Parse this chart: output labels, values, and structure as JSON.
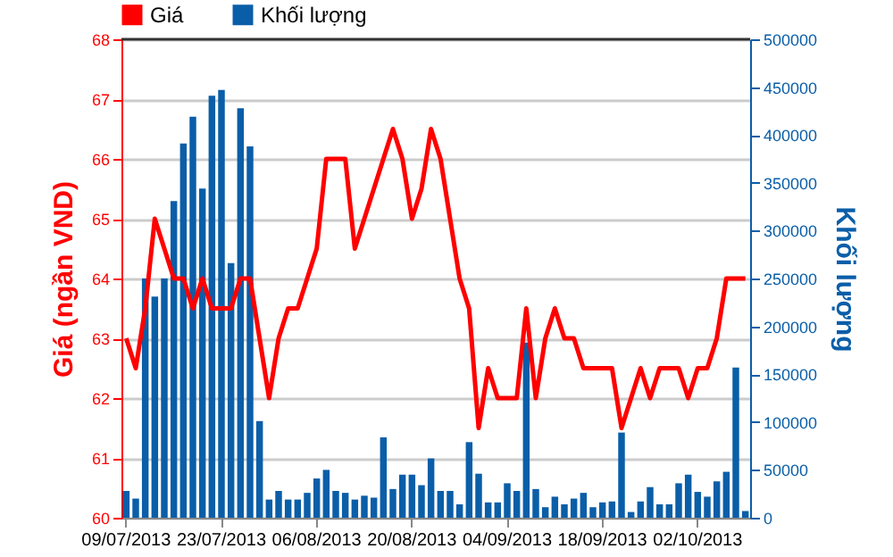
{
  "chart_data": {
    "type": "bar",
    "categories": [
      "09/07/2013",
      null,
      null,
      null,
      null,
      null,
      null,
      null,
      null,
      null,
      "23/07/2013",
      null,
      null,
      null,
      null,
      null,
      null,
      null,
      null,
      null,
      "06/08/2013",
      null,
      null,
      null,
      null,
      null,
      null,
      null,
      null,
      null,
      "20/08/2013",
      null,
      null,
      null,
      null,
      null,
      null,
      null,
      null,
      null,
      "04/09/2013",
      null,
      null,
      null,
      null,
      null,
      null,
      null,
      null,
      null,
      "18/09/2013",
      null,
      null,
      null,
      null,
      null,
      null,
      null,
      null,
      null,
      "02/10/2013",
      null,
      null,
      null,
      null,
      null
    ],
    "series": [
      {
        "name": "Giá",
        "type": "line",
        "color": "#ff0000",
        "values": [
          63.0,
          62.5,
          63.5,
          65.0,
          64.5,
          64.0,
          64.0,
          63.5,
          64.0,
          63.5,
          63.5,
          63.5,
          64.0,
          64.0,
          63.0,
          62.0,
          63.0,
          63.5,
          63.5,
          64.0,
          64.5,
          66.0,
          66.0,
          66.0,
          64.5,
          65.0,
          65.5,
          66.0,
          66.5,
          66.0,
          65.0,
          65.5,
          66.5,
          66.0,
          65.0,
          64.0,
          63.5,
          61.5,
          62.5,
          62.0,
          62.0,
          62.0,
          63.5,
          62.0,
          63.0,
          63.5,
          63.0,
          63.0,
          62.5,
          62.5,
          62.5,
          62.5,
          61.5,
          62.0,
          62.5,
          62.0,
          62.5,
          62.5,
          62.5,
          62.0,
          62.5,
          62.5,
          63.0,
          64.0,
          64.0,
          64.0
        ]
      },
      {
        "name": "Khối lượng",
        "axis": "y2",
        "color": "#0a5ea8",
        "values": [
          28000,
          20000,
          250000,
          231000,
          250000,
          331000,
          391000,
          419000,
          344000,
          441000,
          447000,
          266000,
          428000,
          388000,
          101000,
          19000,
          28000,
          19000,
          19000,
          26000,
          41000,
          50000,
          28000,
          26000,
          19000,
          23000,
          21000,
          84000,
          30000,
          45000,
          45000,
          34000,
          62000,
          28000,
          28000,
          14000,
          79000,
          46000,
          16000,
          16000,
          36000,
          28000,
          183000,
          30000,
          11000,
          22000,
          14000,
          20000,
          26000,
          11000,
          16000,
          17000,
          89000,
          6000,
          17000,
          32000,
          14000,
          14000,
          36000,
          45000,
          27000,
          22000,
          38000,
          48000,
          157000,
          7000
        ]
      }
    ],
    "ylabel": "Giá (ngần VND)",
    "y2label": "Khối lượng",
    "ylim": [
      60,
      68
    ],
    "yticks": [
      60,
      61,
      62,
      63,
      64,
      65,
      66,
      67,
      68
    ],
    "y2lim": [
      0,
      500000
    ],
    "y2ticks": [
      0,
      50000,
      100000,
      150000,
      200000,
      250000,
      300000,
      350000,
      400000,
      450000,
      500000
    ],
    "grid": "y",
    "legend": "top left"
  }
}
